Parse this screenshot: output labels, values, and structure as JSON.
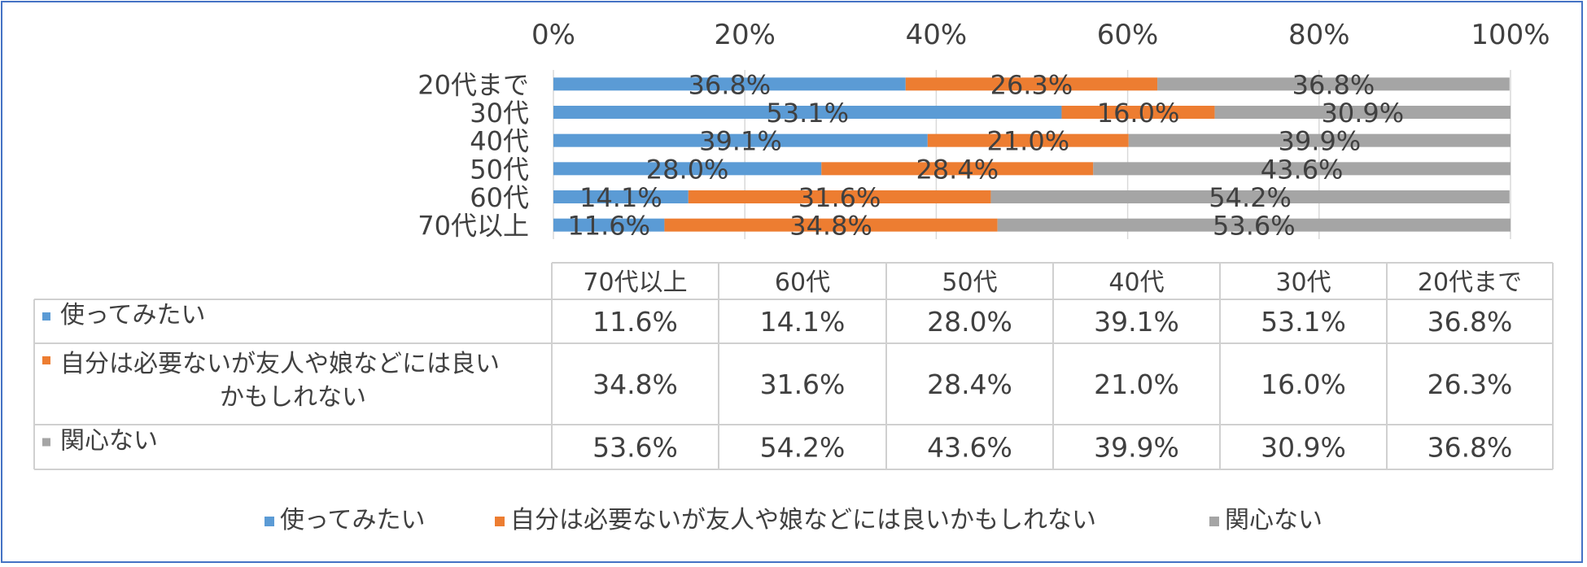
{
  "chart_data": {
    "type": "bar",
    "stacked": "percent",
    "orientation": "horizontal",
    "categories": [
      "20代まで",
      "30代",
      "40代",
      "50代",
      "60代",
      "70代以上"
    ],
    "series": [
      {
        "name": "使ってみたい",
        "color": "#5b9bd5",
        "values": [
          36.8,
          53.1,
          39.1,
          28.0,
          14.1,
          11.6
        ],
        "labels": [
          "36.8%",
          "53.1%",
          "39.1%",
          "28.0%",
          "14.1%",
          "11.6%"
        ]
      },
      {
        "name": "自分は必要ないが友人や娘などには良いかもしれない",
        "color": "#ed7d31",
        "values": [
          26.3,
          16.0,
          21.0,
          28.4,
          31.6,
          34.8
        ],
        "labels": [
          "26.3%",
          "16.0%",
          "21.0%",
          "28.4%",
          "31.6%",
          "34.8%"
        ]
      },
      {
        "name": "関心ない",
        "color": "#a5a5a5",
        "values": [
          36.8,
          30.9,
          39.9,
          43.6,
          54.2,
          53.6
        ],
        "labels": [
          "36.8%",
          "30.9%",
          "39.9%",
          "43.6%",
          "54.2%",
          "53.6%"
        ]
      }
    ],
    "xlim": [
      0,
      100
    ],
    "x_ticks": [
      "0%",
      "20%",
      "40%",
      "60%",
      "80%",
      "100%"
    ],
    "grid": true,
    "legend": "bottom",
    "data_table": {
      "columns": [
        "70代以上",
        "60代",
        "50代",
        "40代",
        "30代",
        "20代まで"
      ],
      "rows": [
        {
          "label": "使ってみたい",
          "label_lines": [
            "使ってみたい"
          ],
          "values": [
            "11.6%",
            "14.1%",
            "28.0%",
            "39.1%",
            "53.1%",
            "36.8%"
          ]
        },
        {
          "label": "自分は必要ないが友人や娘などには良いかもしれない",
          "label_lines": [
            "自分は必要ないが友人や娘などには良い",
            "かもしれない"
          ],
          "values": [
            "34.8%",
            "31.6%",
            "28.4%",
            "21.0%",
            "16.0%",
            "26.3%"
          ]
        },
        {
          "label": "関心ない",
          "label_lines": [
            "関心ない"
          ],
          "values": [
            "53.6%",
            "54.2%",
            "43.6%",
            "39.9%",
            "30.9%",
            "36.8%"
          ]
        }
      ]
    }
  }
}
